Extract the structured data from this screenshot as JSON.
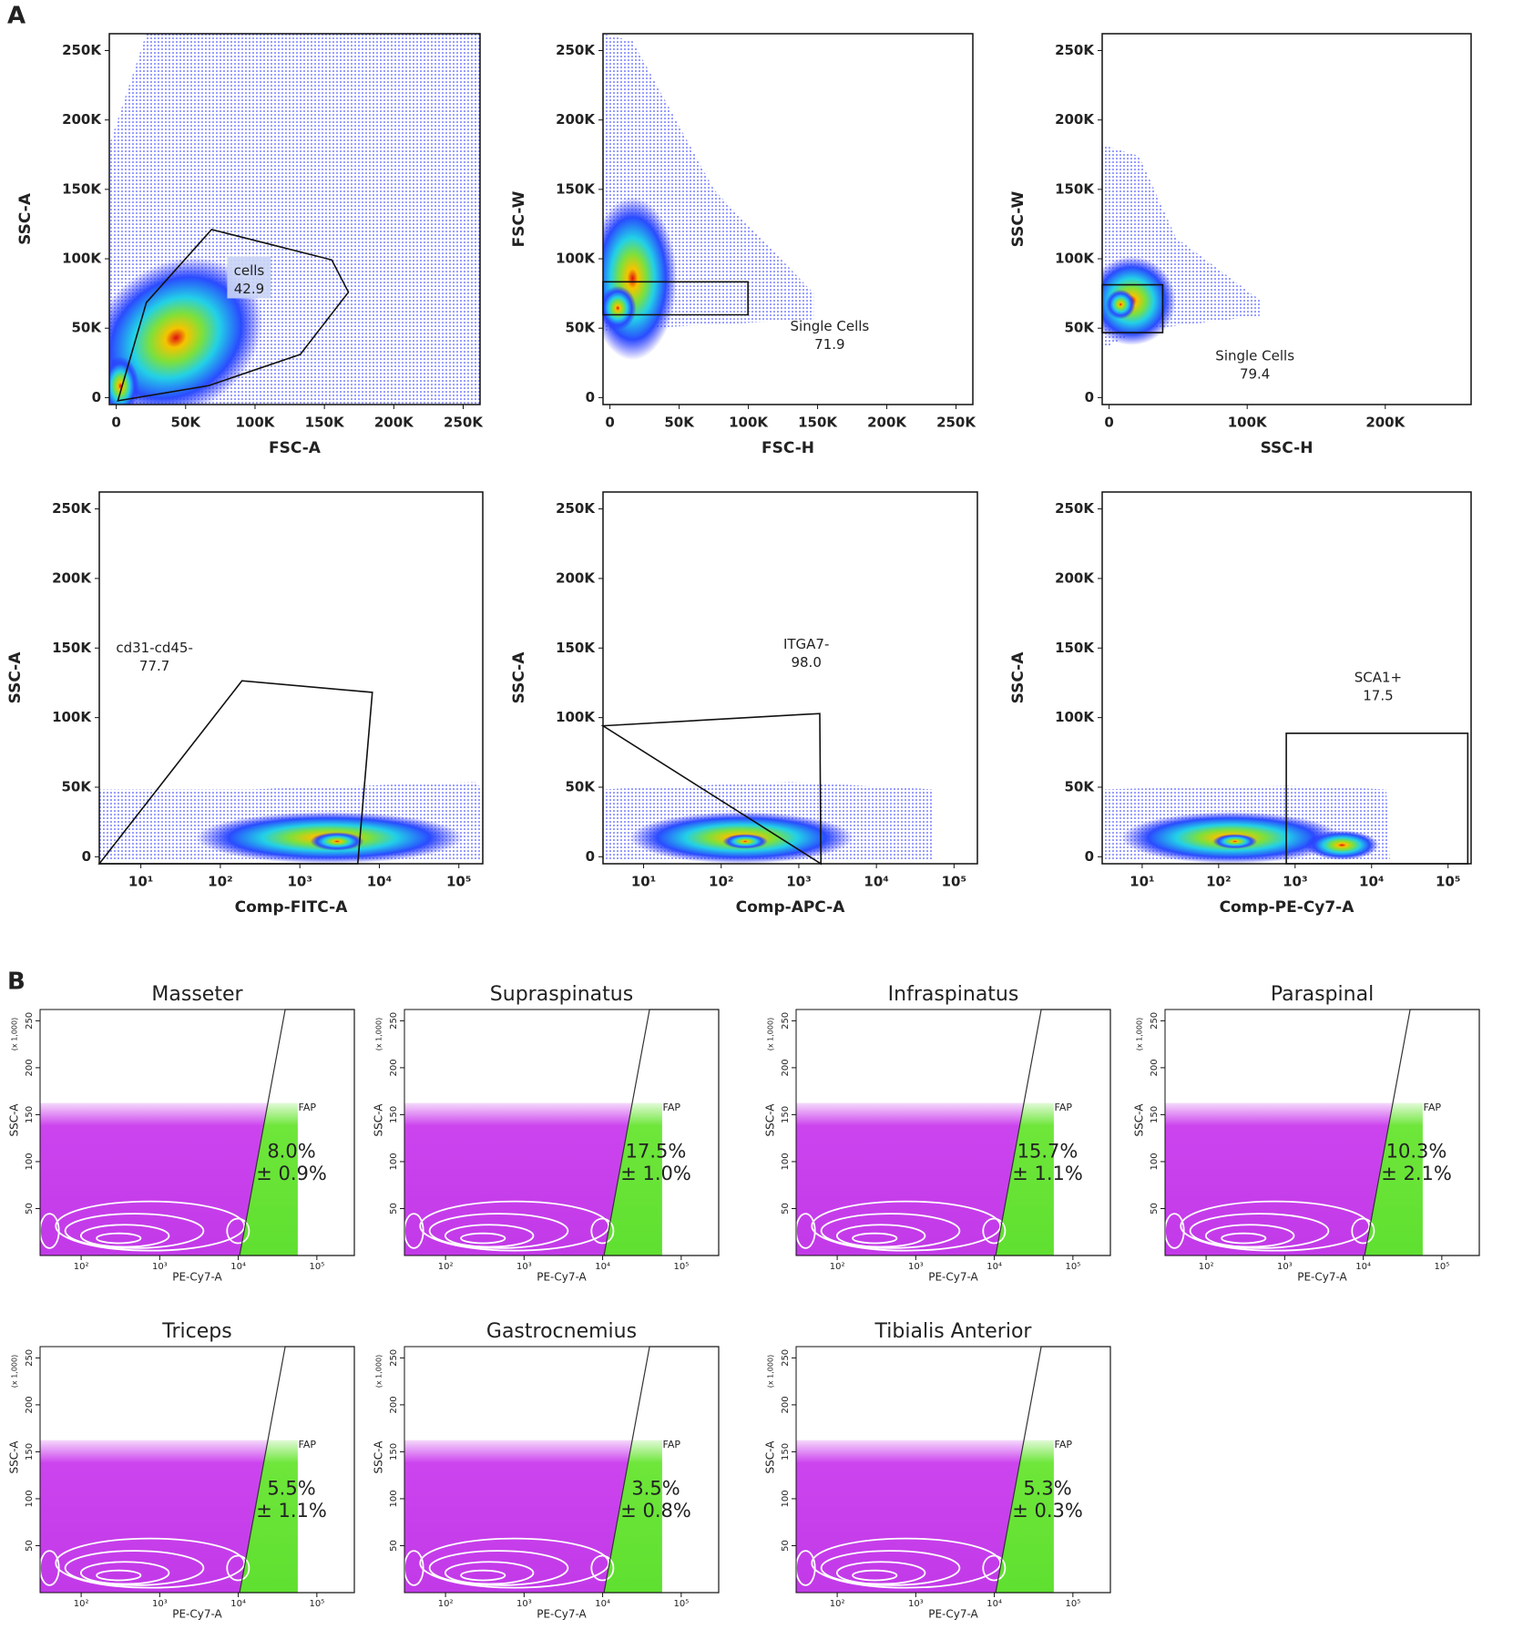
{
  "panel_labels": [
    "A",
    "B"
  ],
  "chart_data": [
    {
      "type": "scatter",
      "x_label": "FSC-A",
      "y_label": "SSC-A",
      "xlim": [
        -5000,
        262144
      ],
      "ylim": [
        -5000,
        262144
      ],
      "xticks": [
        0,
        {
          "value": 50000,
          "label": "50K"
        },
        {
          "value": 100000,
          "label": "100K"
        },
        {
          "value": 150000,
          "label": "150K"
        },
        {
          "value": 200000,
          "label": "200K"
        },
        {
          "value": 250000,
          "label": "250K"
        }
      ],
      "yticks": [
        0,
        {
          "value": 50000,
          "label": "50K"
        },
        {
          "value": 100000,
          "label": "100K"
        },
        {
          "value": 150000,
          "label": "150K"
        },
        {
          "value": 200000,
          "label": "200K"
        },
        {
          "value": 250000,
          "label": "250K"
        }
      ],
      "gate": {
        "name": "cells",
        "value": 42.9
      }
    },
    {
      "type": "scatter",
      "x_label": "FSC-H",
      "y_label": "FSC-W",
      "xlim": [
        -5000,
        262144
      ],
      "ylim": [
        -5000,
        262144
      ],
      "xticks": [
        0,
        {
          "value": 50000,
          "label": "50K"
        },
        {
          "value": 100000,
          "label": "100K"
        },
        {
          "value": 150000,
          "label": "150K"
        },
        {
          "value": 200000,
          "label": "200K"
        },
        {
          "value": 250000,
          "label": "250K"
        }
      ],
      "yticks": [
        0,
        {
          "value": 50000,
          "label": "50K"
        },
        {
          "value": 100000,
          "label": "100K"
        },
        {
          "value": 150000,
          "label": "150K"
        },
        {
          "value": 200000,
          "label": "200K"
        },
        {
          "value": 250000,
          "label": "250K"
        }
      ],
      "gate": {
        "name": "Single Cells",
        "value": 71.9
      }
    },
    {
      "type": "scatter",
      "x_label": "SSC-H",
      "y_label": "SSC-W",
      "xlim": [
        -5000,
        262144
      ],
      "ylim": [
        -5000,
        262144
      ],
      "xticks": [
        0,
        {
          "value": 100000,
          "label": "100K"
        },
        {
          "value": 200000,
          "label": "200K"
        }
      ],
      "yticks": [
        0,
        {
          "value": 50000,
          "label": "50K"
        },
        {
          "value": 100000,
          "label": "100K"
        },
        {
          "value": 150000,
          "label": "150K"
        },
        {
          "value": 200000,
          "label": "200K"
        },
        {
          "value": 250000,
          "label": "250K"
        }
      ],
      "gate": {
        "name": "Single Cells",
        "value": 79.4
      }
    },
    {
      "type": "scatter",
      "x_label": "Comp-FITC-A",
      "y_label": "SSC-A",
      "x_log": true,
      "xlim": [
        3,
        200000
      ],
      "ylim": [
        -5000,
        262144
      ],
      "xticks": [
        {
          "value": 10,
          "label": "10¹"
        },
        {
          "value": 100,
          "label": "10²"
        },
        {
          "value": 1000,
          "label": "10³"
        },
        {
          "value": 10000,
          "label": "10⁴"
        },
        {
          "value": 100000,
          "label": "10⁵"
        }
      ],
      "yticks": [
        0,
        {
          "value": 50000,
          "label": "50K"
        },
        {
          "value": 100000,
          "label": "100K"
        },
        {
          "value": 150000,
          "label": "150K"
        },
        {
          "value": 200000,
          "label": "200K"
        },
        {
          "value": 250000,
          "label": "250K"
        }
      ],
      "gate": {
        "name": "cd31-cd45-",
        "value": 77.7
      }
    },
    {
      "type": "scatter",
      "x_label": "Comp-APC-A",
      "y_label": "SSC-A",
      "x_log": true,
      "xlim": [
        3,
        200000
      ],
      "ylim": [
        -5000,
        262144
      ],
      "xticks": [
        {
          "value": 10,
          "label": "10¹"
        },
        {
          "value": 100,
          "label": "10²"
        },
        {
          "value": 1000,
          "label": "10³"
        },
        {
          "value": 10000,
          "label": "10⁴"
        },
        {
          "value": 100000,
          "label": "10⁵"
        }
      ],
      "yticks": [
        0,
        {
          "value": 50000,
          "label": "50K"
        },
        {
          "value": 100000,
          "label": "100K"
        },
        {
          "value": 150000,
          "label": "150K"
        },
        {
          "value": 200000,
          "label": "200K"
        },
        {
          "value": 250000,
          "label": "250K"
        }
      ],
      "gate": {
        "name": "ITGA7-",
        "value": 98.0,
        "value_label": "98.0"
      }
    },
    {
      "type": "scatter",
      "x_label": "Comp-PE-Cy7-A",
      "y_label": "SSC-A",
      "x_log": true,
      "xlim": [
        3,
        200000
      ],
      "ylim": [
        -5000,
        262144
      ],
      "xticks": [
        {
          "value": 10,
          "label": "10¹"
        },
        {
          "value": 100,
          "label": "10²"
        },
        {
          "value": 1000,
          "label": "10³"
        },
        {
          "value": 10000,
          "label": "10⁴"
        },
        {
          "value": 100000,
          "label": "10⁵"
        }
      ],
      "yticks": [
        0,
        {
          "value": 50000,
          "label": "50K"
        },
        {
          "value": 100000,
          "label": "100K"
        },
        {
          "value": 150000,
          "label": "150K"
        },
        {
          "value": 200000,
          "label": "200K"
        },
        {
          "value": 250000,
          "label": "250K"
        }
      ],
      "gate": {
        "name": "SCA1+",
        "value": 17.5
      }
    },
    {
      "type": "scatter",
      "title": "Masseter",
      "x_label": "PE-Cy7-A",
      "y_label": "SSC-A",
      "y_unit": "(x 1,000)",
      "x_log": true,
      "xlim": [
        30,
        300000
      ],
      "ylim": [
        0,
        262
      ],
      "xticks": [
        {
          "value": 100,
          "label": "10²"
        },
        {
          "value": 1000,
          "label": "10³"
        },
        {
          "value": 10000,
          "label": "10⁴"
        },
        {
          "value": 100000,
          "label": "10⁵"
        }
      ],
      "yticks": [
        50,
        100,
        150,
        200,
        250
      ],
      "gate": {
        "name": "FAP",
        "value": 8.0,
        "value_label": "8.0%",
        "error": 0.9,
        "error_label": "± 0.9%"
      }
    },
    {
      "type": "scatter",
      "title": "Supraspinatus",
      "x_label": "PE-Cy7-A",
      "y_label": "SSC-A",
      "y_unit": "(x 1,000)",
      "x_log": true,
      "xlim": [
        30,
        300000
      ],
      "ylim": [
        0,
        262
      ],
      "xticks": [
        {
          "value": 100,
          "label": "10²"
        },
        {
          "value": 1000,
          "label": "10³"
        },
        {
          "value": 10000,
          "label": "10⁴"
        },
        {
          "value": 100000,
          "label": "10⁵"
        }
      ],
      "yticks": [
        50,
        100,
        150,
        200,
        250
      ],
      "gate": {
        "name": "FAP",
        "value": 17.5,
        "value_label": "17.5%",
        "error": 1.0,
        "error_label": "± 1.0%"
      }
    },
    {
      "type": "scatter",
      "title": "Infraspinatus",
      "x_label": "PE-Cy7-A",
      "y_label": "SSC-A",
      "y_unit": "(x 1,000)",
      "x_log": true,
      "xlim": [
        30,
        300000
      ],
      "ylim": [
        0,
        262
      ],
      "xticks": [
        {
          "value": 100,
          "label": "10²"
        },
        {
          "value": 1000,
          "label": "10³"
        },
        {
          "value": 10000,
          "label": "10⁴"
        },
        {
          "value": 100000,
          "label": "10⁵"
        }
      ],
      "yticks": [
        50,
        100,
        150,
        200,
        250
      ],
      "gate": {
        "name": "FAP",
        "value": 15.7,
        "value_label": "15.7%",
        "error": 1.1,
        "error_label": "± 1.1%"
      }
    },
    {
      "type": "scatter",
      "title": "Paraspinal",
      "x_label": "PE-Cy7-A",
      "y_label": "SSC-A",
      "y_unit": "(x 1,000)",
      "x_log": true,
      "xlim": [
        30,
        300000
      ],
      "ylim": [
        0,
        262
      ],
      "xticks": [
        {
          "value": 100,
          "label": "10²"
        },
        {
          "value": 1000,
          "label": "10³"
        },
        {
          "value": 10000,
          "label": "10⁴"
        },
        {
          "value": 100000,
          "label": "10⁵"
        }
      ],
      "yticks": [
        50,
        100,
        150,
        200,
        250
      ],
      "gate": {
        "name": "FAP",
        "value": 10.3,
        "value_label": "10.3%",
        "error": 2.1,
        "error_label": "± 2.1%"
      }
    },
    {
      "type": "scatter",
      "title": "Triceps",
      "x_label": "PE-Cy7-A",
      "y_label": "SSC-A",
      "y_unit": "(x 1,000)",
      "x_log": true,
      "xlim": [
        30,
        300000
      ],
      "ylim": [
        0,
        262
      ],
      "xticks": [
        {
          "value": 100,
          "label": "10²"
        },
        {
          "value": 1000,
          "label": "10³"
        },
        {
          "value": 10000,
          "label": "10⁴"
        },
        {
          "value": 100000,
          "label": "10⁵"
        }
      ],
      "yticks": [
        50,
        100,
        150,
        200,
        250
      ],
      "gate": {
        "name": "FAP",
        "value": 5.5,
        "value_label": "5.5%",
        "error": 1.1,
        "error_label": "± 1.1%"
      }
    },
    {
      "type": "scatter",
      "title": "Gastrocnemius",
      "x_label": "PE-Cy7-A",
      "y_label": "SSC-A",
      "y_unit": "(x 1,000)",
      "x_log": true,
      "xlim": [
        30,
        300000
      ],
      "ylim": [
        0,
        262
      ],
      "xticks": [
        {
          "value": 100,
          "label": "10²"
        },
        {
          "value": 1000,
          "label": "10³"
        },
        {
          "value": 10000,
          "label": "10⁴"
        },
        {
          "value": 100000,
          "label": "10⁵"
        }
      ],
      "yticks": [
        50,
        100,
        150,
        200,
        250
      ],
      "gate": {
        "name": "FAP",
        "value": 3.5,
        "value_label": "3.5%",
        "error": 0.8,
        "error_label": "± 0.8%"
      }
    },
    {
      "type": "scatter",
      "title": "Tibialis Anterior",
      "x_label": "PE-Cy7-A",
      "y_label": "SSC-A",
      "y_unit": "(x 1,000)",
      "x_log": true,
      "xlim": [
        30,
        300000
      ],
      "ylim": [
        0,
        262
      ],
      "xticks": [
        {
          "value": 100,
          "label": "10²"
        },
        {
          "value": 1000,
          "label": "10³"
        },
        {
          "value": 10000,
          "label": "10⁴"
        },
        {
          "value": 100000,
          "label": "10⁵"
        }
      ],
      "yticks": [
        50,
        100,
        150,
        200,
        250
      ],
      "gate": {
        "name": "FAP",
        "value": 5.3,
        "value_label": "5.3%",
        "error": 0.3,
        "error_label": "± 0.3%"
      }
    }
  ]
}
